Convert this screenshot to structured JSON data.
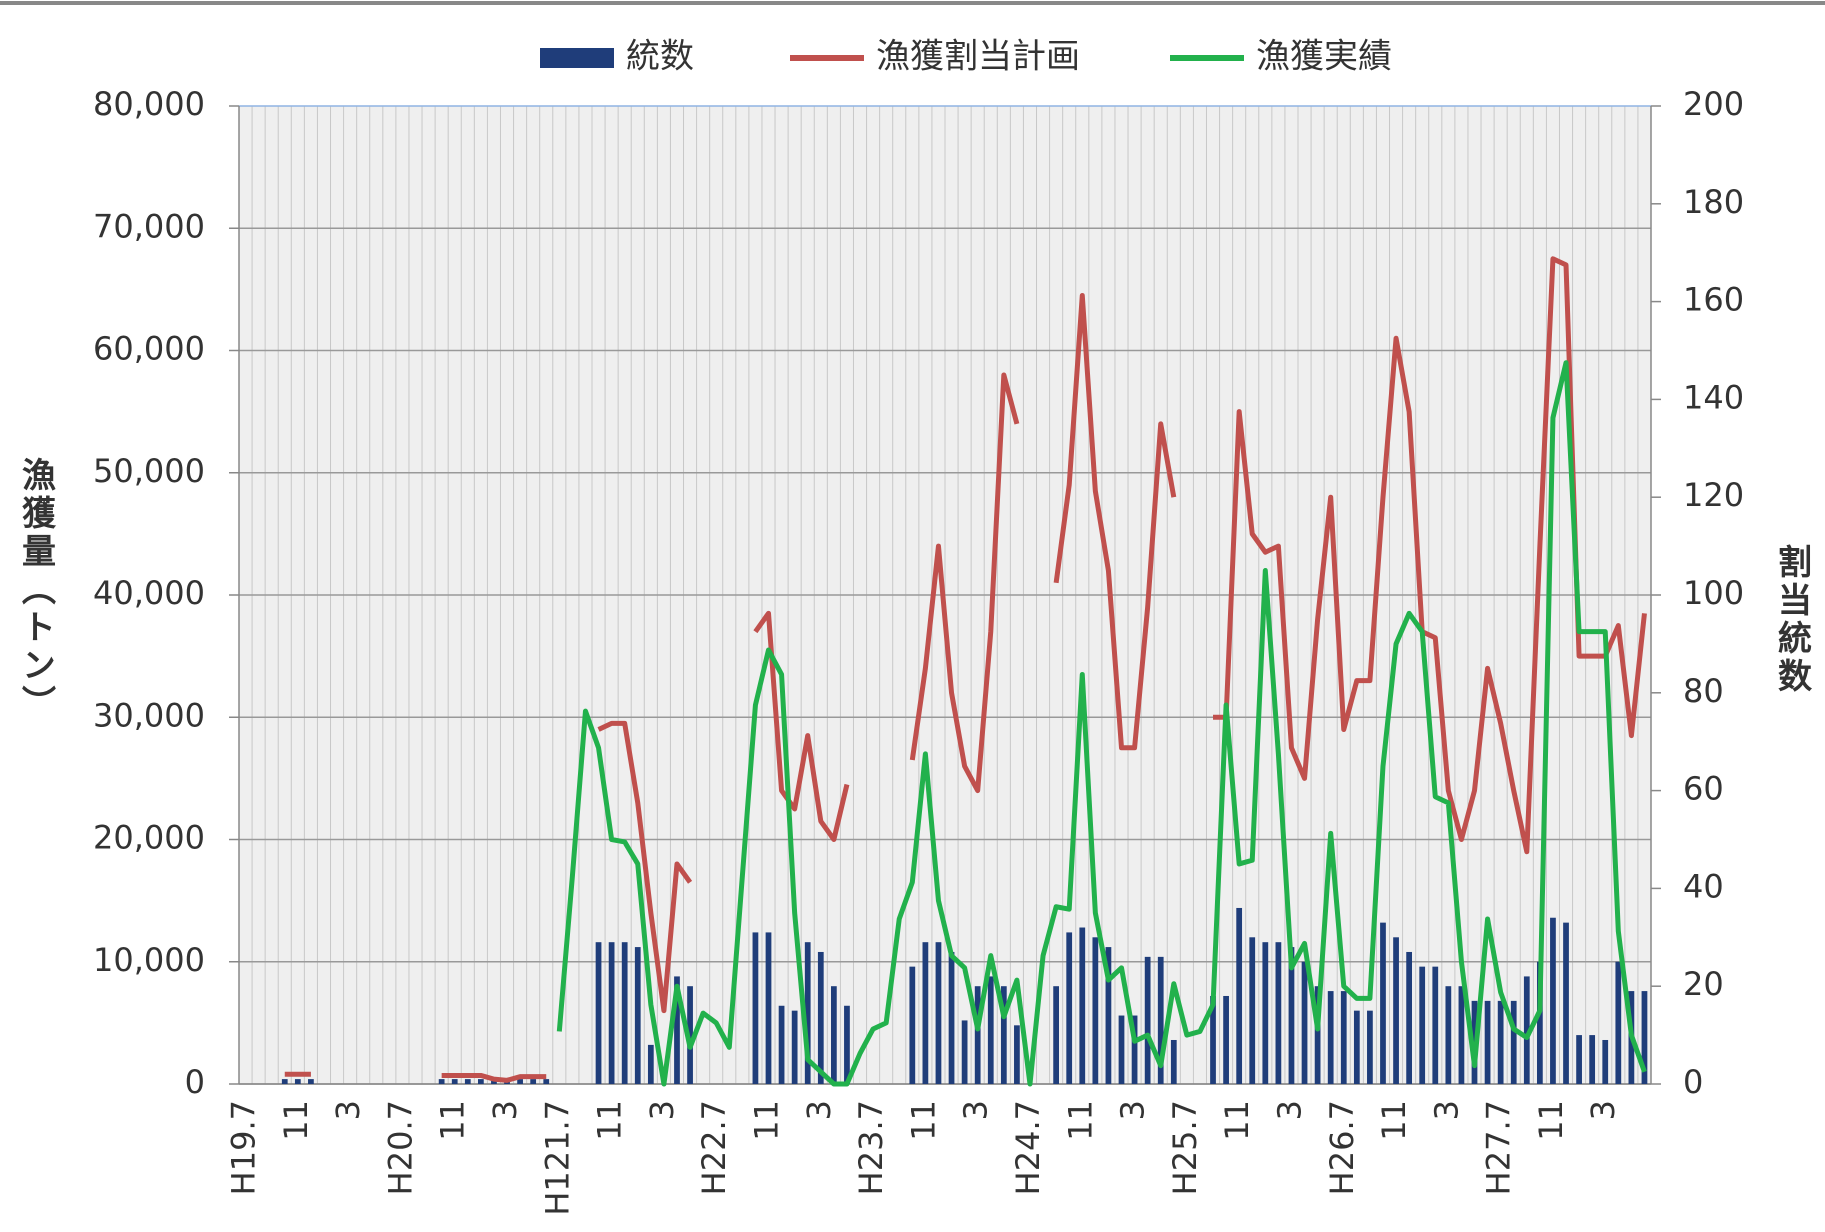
{
  "chart_data": {
    "type": "combo",
    "y_label": "漁獲量（トン）",
    "y2_label": "割当統数",
    "categories": [
      "H19.7",
      null,
      null,
      null,
      "11",
      null,
      null,
      null,
      "3",
      null,
      null,
      null,
      "H20.7",
      null,
      null,
      null,
      "11",
      null,
      null,
      null,
      "3",
      null,
      null,
      null,
      "H121.7",
      null,
      null,
      null,
      "11",
      null,
      null,
      null,
      "3",
      null,
      null,
      null,
      "H22.7",
      null,
      null,
      null,
      "11",
      null,
      null,
      null,
      "3",
      null,
      null,
      null,
      "H23.7",
      null,
      null,
      null,
      "11",
      null,
      null,
      null,
      "3",
      null,
      null,
      null,
      "H24.7",
      null,
      null,
      null,
      "11",
      null,
      null,
      null,
      "3",
      null,
      null,
      null,
      "H25.7",
      null,
      null,
      null,
      "11",
      null,
      null,
      null,
      "3",
      null,
      null,
      null,
      "H26.7",
      null,
      null,
      null,
      "11",
      null,
      null,
      null,
      "3",
      null,
      null,
      null,
      "H27.7",
      null,
      null,
      null,
      "11",
      null,
      null,
      null,
      "3",
      null,
      null,
      null
    ],
    "ylim": [
      0,
      80000
    ],
    "yticks": [
      0,
      {
        "value": 10000,
        "label": "10,000"
      },
      {
        "value": 20000,
        "label": "20,000"
      },
      {
        "value": 30000,
        "label": "30,000"
      },
      {
        "value": 40000,
        "label": "40,000"
      },
      {
        "value": 50000,
        "label": "50,000"
      },
      {
        "value": 60000,
        "label": "60,000"
      },
      {
        "value": 70000,
        "label": "70,000"
      },
      {
        "value": 80000,
        "label": "80,000"
      }
    ],
    "y2lim": [
      0,
      200
    ],
    "y2ticks": [
      0,
      20,
      40,
      60,
      80,
      100,
      120,
      140,
      160,
      180,
      200
    ],
    "grid": true,
    "legend": "top",
    "series": [
      {
        "name": "統数",
        "type": "bar",
        "axis": "y2",
        "color": "#1f3d7a",
        "values": [
          0,
          0,
          0,
          1,
          1,
          1,
          0,
          0,
          0,
          0,
          0,
          0,
          0,
          0,
          0,
          1,
          1,
          1,
          1,
          1,
          1,
          1,
          1,
          1,
          0,
          0,
          0,
          29,
          29,
          29,
          28,
          8,
          0,
          22,
          20,
          0,
          0,
          0,
          0,
          31,
          31,
          16,
          15,
          29,
          27,
          20,
          16,
          0,
          0,
          0,
          0,
          24,
          29,
          29,
          27,
          13,
          20,
          22,
          20,
          12,
          0,
          0,
          20,
          31,
          32,
          30,
          28,
          14,
          14,
          26,
          26,
          9,
          0,
          0,
          18,
          18,
          36,
          30,
          29,
          29,
          28,
          25,
          20,
          19,
          19,
          15,
          15,
          33,
          30,
          27,
          24,
          24,
          20,
          20,
          17,
          17,
          17,
          17,
          22,
          25,
          34,
          33,
          10,
          10,
          9,
          25,
          19,
          19
        ]
      },
      {
        "name": "漁獲割当計画",
        "type": "line",
        "color": "#c0504d",
        "values": [
          null,
          null,
          null,
          800,
          800,
          800,
          null,
          null,
          null,
          null,
          null,
          null,
          null,
          null,
          null,
          700,
          700,
          700,
          700,
          400,
          300,
          600,
          600,
          600,
          null,
          null,
          null,
          29000,
          29500,
          29500,
          23000,
          14000,
          6000,
          18000,
          16500,
          null,
          null,
          null,
          null,
          37000,
          38500,
          24000,
          22500,
          28500,
          21500,
          20000,
          24500,
          null,
          null,
          null,
          null,
          26500,
          34000,
          44000,
          32000,
          26000,
          24000,
          37000,
          58000,
          54000,
          null,
          null,
          41000,
          49000,
          64500,
          48500,
          42000,
          27500,
          27500,
          39000,
          54000,
          48000,
          null,
          null,
          30000,
          30000,
          55000,
          45000,
          43500,
          44000,
          27500,
          25000,
          38000,
          48000,
          29000,
          33000,
          33000,
          48000,
          61000,
          55000,
          37000,
          36500,
          24000,
          20000,
          24000,
          34000,
          29500,
          24000,
          19000,
          44000,
          67500,
          67000,
          35000,
          35000,
          35000,
          37500,
          28500,
          38500
        ]
      },
      {
        "name": "漁獲実績",
        "type": "line",
        "color": "#22b14c",
        "values": [
          null,
          null,
          null,
          null,
          null,
          null,
          null,
          null,
          null,
          null,
          null,
          null,
          null,
          null,
          null,
          null,
          null,
          null,
          null,
          null,
          null,
          null,
          null,
          null,
          4300,
          17000,
          30500,
          27500,
          20000,
          19800,
          18000,
          6500,
          0,
          8000,
          3000,
          5800,
          5000,
          3000,
          17000,
          31000,
          35500,
          33500,
          14000,
          2000,
          1000,
          0,
          0,
          2500,
          4500,
          5000,
          13500,
          16500,
          27000,
          15000,
          10500,
          9500,
          4500,
          10500,
          5500,
          8500,
          0,
          10500,
          14500,
          14300,
          33500,
          14000,
          8500,
          9500,
          3500,
          4000,
          1500,
          8200,
          4000,
          4300,
          6500,
          31000,
          18000,
          18300,
          42000,
          27000,
          9500,
          11500,
          4500,
          20500,
          8000,
          7000,
          7000,
          26000,
          36000,
          38500,
          37000,
          23500,
          23000,
          10000,
          1500,
          13500,
          7500,
          4500,
          3800,
          6000,
          54500,
          59000,
          37000,
          37000,
          37000,
          12500,
          4000,
          1000
        ]
      }
    ]
  }
}
